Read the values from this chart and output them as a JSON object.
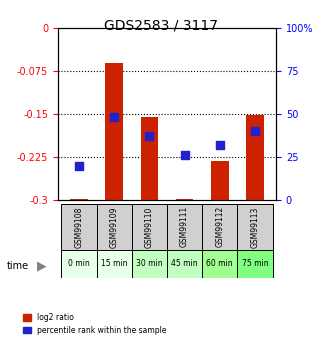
{
  "title": "GDS2583 / 3117",
  "samples": [
    "GSM99108",
    "GSM99109",
    "GSM99110",
    "GSM99111",
    "GSM99112",
    "GSM99113"
  ],
  "time_labels": [
    "0 min",
    "15 min",
    "30 min",
    "45 min",
    "60 min",
    "75 min"
  ],
  "log2_ratio": [
    -0.298,
    -0.062,
    -0.155,
    -0.298,
    -0.232,
    -0.152
  ],
  "percentile_rank": [
    20,
    48,
    37,
    26,
    32,
    40
  ],
  "bar_color": "#cc2200",
  "dot_color": "#2222cc",
  "ylim_left": [
    -0.3,
    0.0
  ],
  "ylim_right": [
    0,
    100
  ],
  "yticks_left": [
    0.0,
    -0.075,
    -0.15,
    -0.225,
    -0.3
  ],
  "yticks_right": [
    100,
    75,
    50,
    25,
    0
  ],
  "bar_bottom": -0.3,
  "bar_width": 0.5,
  "time_bg_colors": [
    "#e8ffe8",
    "#e8ffe8",
    "#c0ffc0",
    "#c0ffc0",
    "#a0ff90",
    "#80ff80"
  ],
  "sample_bg_color": "#d0d0d0",
  "legend_red": "log2 ratio",
  "legend_blue": "percentile rank within the sample"
}
